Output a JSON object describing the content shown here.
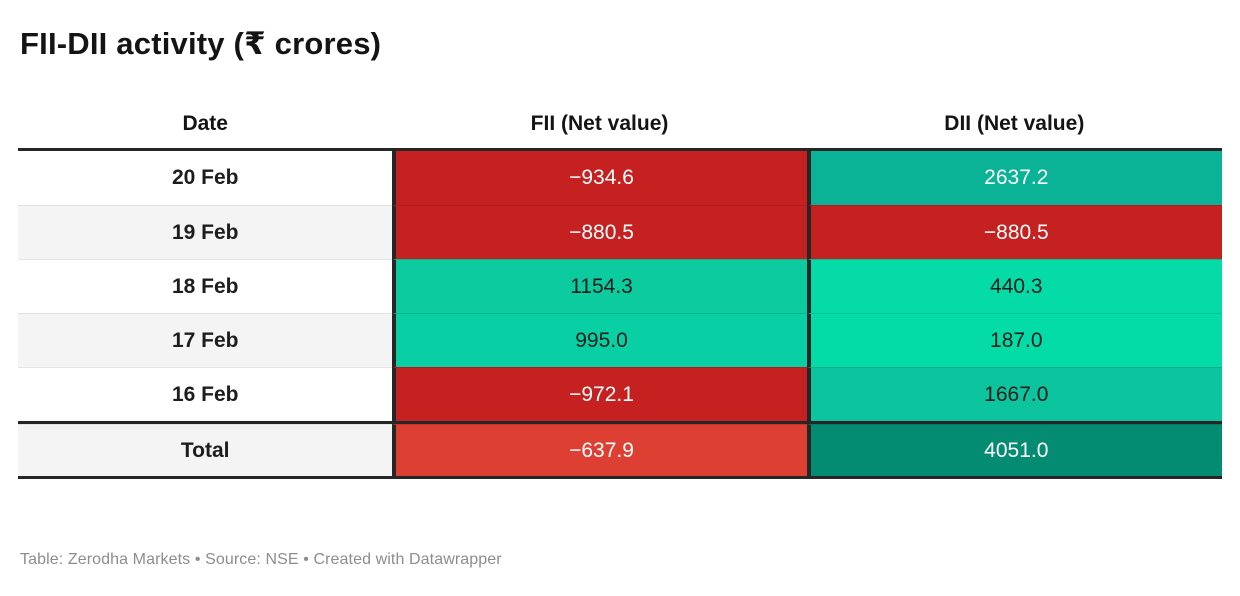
{
  "title": "FII-DII activity (₹ crores)",
  "footer": "Table: Zerodha Markets • Source: NSE • Created with Datawrapper",
  "colors": {
    "negative_red": "#c52121",
    "total_red": "#dd4032",
    "green_bright": "#04dca8",
    "green_mid": "#0bcb9f",
    "teal_dark": "#0ab296",
    "total_green_dark": "#048c72",
    "border_dark": "#262626"
  },
  "table": {
    "columns": [
      "Date",
      "FII (Net value)",
      "DII (Net value)"
    ],
    "rows": [
      {
        "date": "20 Feb",
        "date_bg": "#ffffff",
        "fii": "−934.6",
        "fii_bg": "#c52121",
        "fii_fg": "#ffffff",
        "dii": "2637.2",
        "dii_bg": "#0ab296",
        "dii_fg": "#ffffff"
      },
      {
        "date": "19 Feb",
        "date_bg": "#f4f4f4",
        "fii": "−880.5",
        "fii_bg": "#c52121",
        "fii_fg": "#ffffff",
        "dii": "−880.5",
        "dii_bg": "#c52121",
        "dii_fg": "#ffffff"
      },
      {
        "date": "18 Feb",
        "date_bg": "#ffffff",
        "fii": "1154.3",
        "fii_bg": "#0bcb9f",
        "fii_fg": "#1d1d1d",
        "dii": "440.3",
        "dii_bg": "#04dba7",
        "dii_fg": "#1d1d1d"
      },
      {
        "date": "17 Feb",
        "date_bg": "#f4f4f4",
        "fii": "995.0",
        "fii_bg": "#08d0a4",
        "fii_fg": "#1d1d1d",
        "dii": "187.0",
        "dii_bg": "#04dca8",
        "dii_fg": "#1d1d1d"
      },
      {
        "date": "16 Feb",
        "date_bg": "#ffffff",
        "fii": "−972.1",
        "fii_bg": "#c52121",
        "fii_fg": "#ffffff",
        "dii": "1667.0",
        "dii_bg": "#0cc49e",
        "dii_fg": "#1d1d1d"
      }
    ],
    "total": {
      "label": "Total",
      "label_bg": "#f4f4f4",
      "fii": "−637.9",
      "fii_bg": "#dd4032",
      "fii_fg": "#ffffff",
      "dii": "4051.0",
      "dii_bg": "#048c72",
      "dii_fg": "#ffffff"
    }
  },
  "chart_data": {
    "type": "table",
    "title": "FII-DII activity (₹ crores)",
    "columns": [
      "Date",
      "FII (Net value)",
      "DII (Net value)"
    ],
    "rows": [
      [
        "20 Feb",
        -934.6,
        2637.2
      ],
      [
        "19 Feb",
        -880.5,
        -880.5
      ],
      [
        "18 Feb",
        1154.3,
        440.3
      ],
      [
        "17 Feb",
        995.0,
        187.0
      ],
      [
        "16 Feb",
        -972.1,
        1667.0
      ],
      [
        "Total",
        -637.9,
        4051.0
      ]
    ],
    "notes": "Cells shaded on diverging red-green scale: red for negative net values (white text), green for positive; darker green for larger magnitudes (white text on darkest)."
  }
}
